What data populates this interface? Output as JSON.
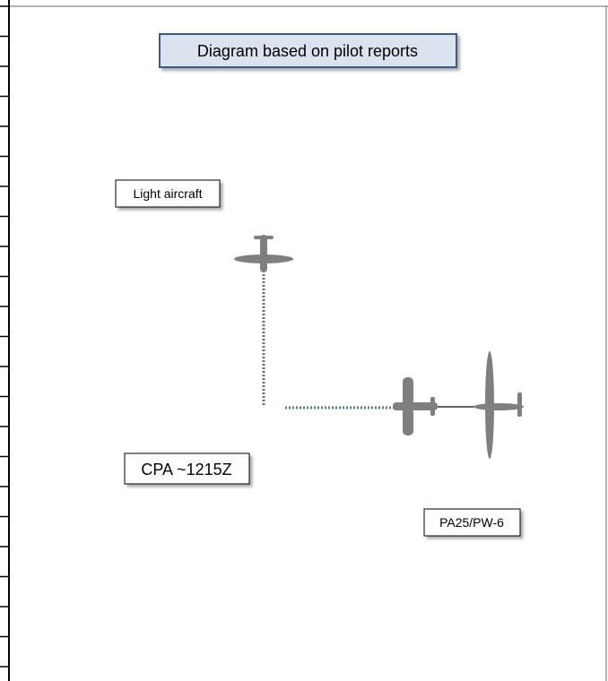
{
  "title": "Diagram based on pilot reports",
  "labels": {
    "light_aircraft": "Light aircraft",
    "cpa": "CPA ~1215Z",
    "tug": "PA25/PW-6"
  }
}
